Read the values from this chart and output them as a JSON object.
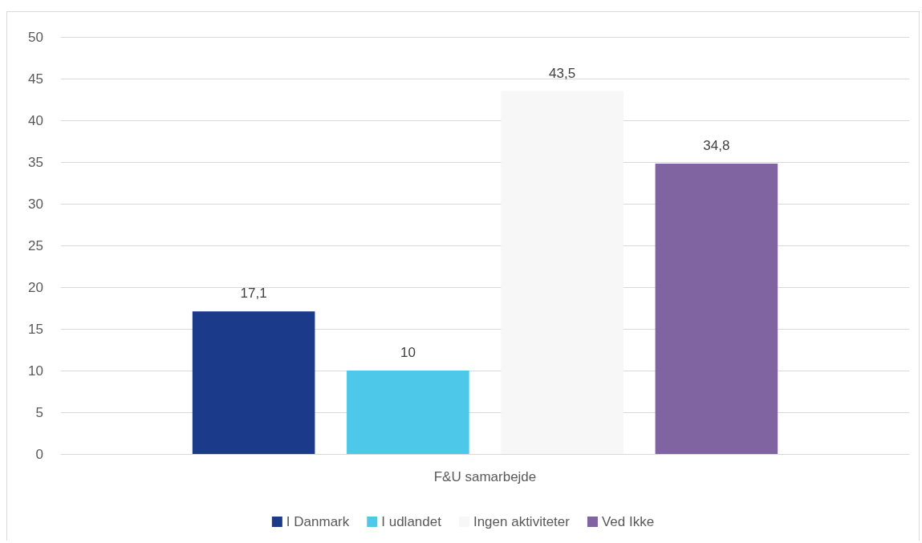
{
  "chart_data": {
    "type": "bar",
    "categories": [
      "F&U samarbejde"
    ],
    "series": [
      {
        "name": "I Danmark",
        "color": "#1b3a8a",
        "values": [
          17.1
        ],
        "value_labels": [
          "17,1"
        ]
      },
      {
        "name": "I udlandet",
        "color": "#4dc8e9",
        "values": [
          10
        ],
        "value_labels": [
          "10"
        ]
      },
      {
        "name": "Ingen aktiviteter",
        "color": "#f7f7f7",
        "values": [
          43.5
        ],
        "value_labels": [
          "43,5"
        ]
      },
      {
        "name": "Ved Ikke",
        "color": "#8064a2",
        "values": [
          34.8
        ],
        "value_labels": [
          "34,8"
        ]
      }
    ],
    "ylim": [
      0,
      50
    ],
    "yticks": [
      0,
      5,
      10,
      15,
      20,
      25,
      30,
      35,
      40,
      45,
      50
    ],
    "grid": "y",
    "legend": "bottom"
  }
}
